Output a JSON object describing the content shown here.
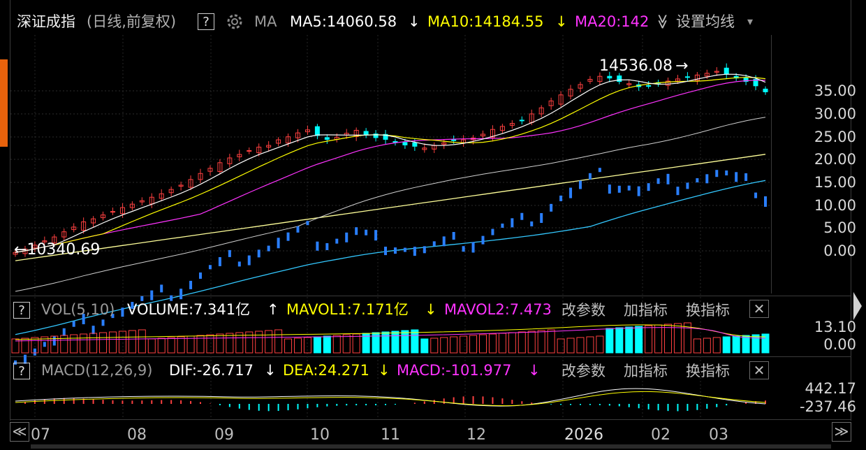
{
  "header": {
    "index_name": "深证成指",
    "period": "(日线,前复权)",
    "help": "?",
    "ma_label": "MA",
    "ma5": "MA5:14060.58",
    "ma5_arrow": "↓",
    "ma10": "MA10:14184.55",
    "ma10_arrow": "↓",
    "ma20": "MA20:142",
    "collapse": "≫",
    "settings": "设置均线",
    "dropdown": "▾",
    "colors": {
      "ma5": "#ffffff",
      "ma10": "#ffff00",
      "ma20": "#ff33ff"
    }
  },
  "annotations": {
    "high_label": "14536.08",
    "high_arrow": "→",
    "low_label": "10340.69",
    "low_arrow": "←"
  },
  "price_axis": [
    "35.00",
    "30.00",
    "25.00",
    "20.00",
    "15.00",
    "10.00",
    "5.00",
    "0.00"
  ],
  "volume_panel": {
    "help": "?",
    "name": "VOL(5,10)",
    "volume": "VOLUME:7.341亿",
    "volume_arrow": "↑",
    "mavol1": "MAVOL1:7.171亿",
    "mavol1_arrow": "↓",
    "mavol2": "MAVOL2:7.473",
    "edit_params": "改参数",
    "add_indicator": "加指标",
    "switch_indicator": "换指标",
    "close": "✕",
    "axis": [
      "13.10",
      "0.00"
    ]
  },
  "macd_panel": {
    "help": "?",
    "name": "MACD(12,26,9)",
    "dif": "DIF:-26.717",
    "dif_arrow": "↓",
    "dea": "DEA:24.271",
    "dea_arrow": "↓",
    "macd": "MACD:-101.977",
    "macd_arrow": "↓",
    "edit_params": "改参数",
    "add_indicator": "加指标",
    "switch_indicator": "换指标",
    "close": "✕",
    "axis": [
      "442.17",
      "-237.46"
    ]
  },
  "x_axis": [
    "07",
    "08",
    "09",
    "10",
    "11",
    "12",
    "2026",
    "02",
    "03"
  ],
  "nav": {
    "left": "≪",
    "right": "≫"
  },
  "chart_data": {
    "type": "candlestick",
    "title": "深证成指",
    "subtitle": "(日线,前复权)",
    "x_labels": [
      "07",
      "08",
      "09",
      "10",
      "11",
      "12",
      "2026",
      "02",
      "03"
    ],
    "y_tick_labels": [
      "35.00",
      "30.00",
      "25.00",
      "20.00",
      "15.00",
      "10.00",
      "5.00",
      "0.00"
    ],
    "close_approx": [
      10340,
      10420,
      10510,
      10610,
      10700,
      10820,
      10930,
      11050,
      11120,
      11210,
      11290,
      11380,
      11460,
      11540,
      11620,
      11700,
      11800,
      11900,
      12030,
      12170,
      12290,
      12420,
      12530,
      12610,
      12700,
      12780,
      12820,
      12950,
      13020,
      13110,
      13180,
      13050,
      12960,
      13010,
      13100,
      13170,
      13060,
      13000,
      12960,
      12890,
      12830,
      12800,
      12760,
      12820,
      12880,
      12930,
      12950,
      12990,
      13080,
      13190,
      13260,
      13330,
      13400,
      13550,
      13690,
      13850,
      13990,
      14120,
      14230,
      14350,
      14420,
      14380,
      14300,
      14250,
      14180,
      14200,
      14260,
      14310,
      14360,
      14400,
      14450,
      14490,
      14536,
      14470,
      14380,
      14300,
      14200,
      14060
    ],
    "high": 14536.08,
    "low": 10340.69,
    "ma5_last": 14060.58,
    "ma10_last": 14184.55,
    "volume_last": "7.341亿",
    "mavol1_last": "7.171亿",
    "volume_axis": [
      0,
      13.1
    ],
    "macd_axis": [
      -237.46,
      442.17
    ],
    "dif_last": -26.717,
    "dea_last": 24.271,
    "macd_last": -101.977
  }
}
